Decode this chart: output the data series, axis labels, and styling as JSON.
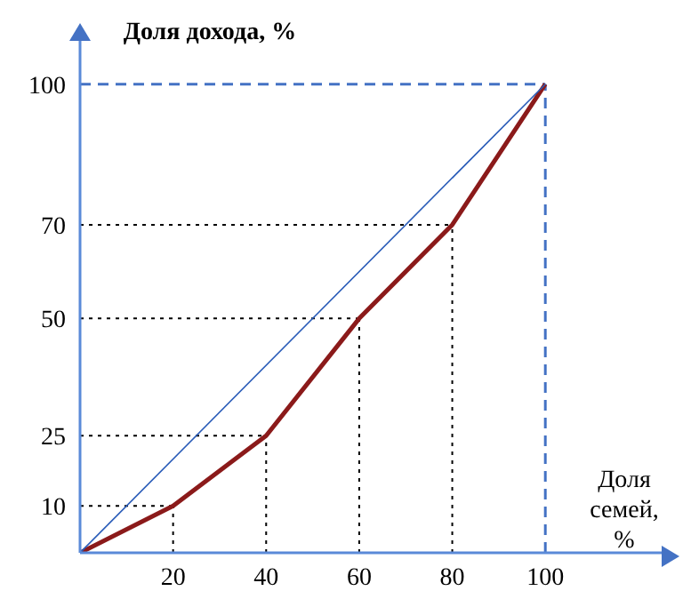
{
  "chart_data": {
    "type": "line",
    "ylabel": "Доля дохода, %",
    "xlabel": "Доля семей, %",
    "x": [
      0,
      20,
      40,
      60,
      80,
      100
    ],
    "series": [
      {
        "color": "#8b1a1a",
        "values": [
          0,
          10,
          25,
          50,
          70,
          100
        ]
      },
      {
        "color": "#2a5cb8",
        "x": [
          0,
          100
        ],
        "values": [
          0,
          100
        ]
      }
    ],
    "xlim": [
      0,
      125
    ],
    "ylim": [
      0,
      110
    ],
    "xticks": [
      20,
      40,
      60,
      80,
      100
    ],
    "yticks": [
      10,
      25,
      50,
      70,
      100
    ],
    "ref_lines": [
      {
        "axis": "y",
        "value": 100,
        "color": "#4472c4",
        "line_style": "dashed"
      },
      {
        "axis": "x",
        "value": 100,
        "color": "#4472c4",
        "line_style": "dashed"
      },
      {
        "axis": "x",
        "value": 20,
        "color": "#000000",
        "line_style": "dotted"
      },
      {
        "axis": "x",
        "value": 40,
        "color": "#000000",
        "line_style": "dotted"
      },
      {
        "axis": "x",
        "value": 60,
        "color": "#000000",
        "line_style": "dotted"
      },
      {
        "axis": "x",
        "value": 80,
        "color": "#000000",
        "line_style": "dotted"
      },
      {
        "axis": "y",
        "value": 10,
        "color": "#000000",
        "line_style": "dotted"
      },
      {
        "axis": "y",
        "value": 25,
        "color": "#000000",
        "line_style": "dotted"
      },
      {
        "axis": "y",
        "value": 50,
        "color": "#000000",
        "line_style": "dotted"
      },
      {
        "axis": "y",
        "value": 70,
        "color": "#000000",
        "line_style": "dotted"
      }
    ],
    "grid": false,
    "marker": "none",
    "legend": false
  }
}
